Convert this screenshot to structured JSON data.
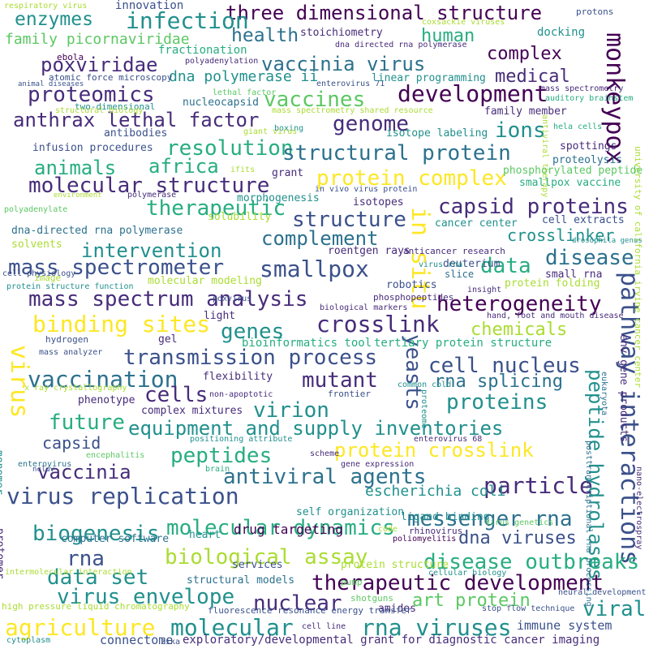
{
  "palette": {
    "p1": "#440154",
    "p2": "#472c7a",
    "p3": "#3b518b",
    "p4": "#2c718e",
    "p5": "#21908d",
    "p6": "#27ad81",
    "p7": "#5cc863",
    "p8": "#aadc32",
    "p9": "#fde725"
  },
  "words": [
    {
      "text": "three dimensional structure",
      "c": "p1"
    },
    {
      "text": "infection",
      "c": "p5"
    },
    {
      "text": "enzymes",
      "c": "p5"
    },
    {
      "text": "family picornaviridae",
      "c": "p7"
    },
    {
      "text": "health",
      "c": "p4"
    },
    {
      "text": "human",
      "c": "p6"
    },
    {
      "text": "monkeypox",
      "c": "p1"
    },
    {
      "text": "complex",
      "c": "p1"
    },
    {
      "text": "poxviridae",
      "c": "p2"
    },
    {
      "text": "vaccinia virus",
      "c": "p4"
    },
    {
      "text": "medical",
      "c": "p2"
    },
    {
      "text": "dna polymerase ii",
      "c": "p5"
    },
    {
      "text": "proteomics",
      "c": "p2"
    },
    {
      "text": "development",
      "c": "p1"
    },
    {
      "text": "vaccines",
      "c": "p7"
    },
    {
      "text": "anthrax lethal factor",
      "c": "p2"
    },
    {
      "text": "genome",
      "c": "p2"
    },
    {
      "text": "ions",
      "c": "p5"
    },
    {
      "text": "resolution",
      "c": "p6"
    },
    {
      "text": "structural protein",
      "c": "p4"
    },
    {
      "text": "animals",
      "c": "p6"
    },
    {
      "text": "africa",
      "c": "p6"
    },
    {
      "text": "molecular structure",
      "c": "p2"
    },
    {
      "text": "protein complex",
      "c": "p9"
    },
    {
      "text": "therapeutic",
      "c": "p6"
    },
    {
      "text": "capsid proteins",
      "c": "p2"
    },
    {
      "text": "structure",
      "c": "p3"
    },
    {
      "text": "in situ",
      "c": "p9"
    },
    {
      "text": "complement",
      "c": "p4"
    },
    {
      "text": "crosslinker",
      "c": "p5"
    },
    {
      "text": "intervention",
      "c": "p5"
    },
    {
      "text": "mass spectrometer",
      "c": "p3"
    },
    {
      "text": "smallpox",
      "c": "p3"
    },
    {
      "text": "data",
      "c": "p6"
    },
    {
      "text": "disease",
      "c": "p4"
    },
    {
      "text": "mass spectrum analysis",
      "c": "p2"
    },
    {
      "text": "heterogeneity",
      "c": "p1"
    },
    {
      "text": "binding sites",
      "c": "p9"
    },
    {
      "text": "genes",
      "c": "p5"
    },
    {
      "text": "crosslink",
      "c": "p2"
    },
    {
      "text": "chemicals",
      "c": "p8"
    },
    {
      "text": "pathway interactions",
      "c": "p3"
    },
    {
      "text": "transmission process",
      "c": "p3"
    },
    {
      "text": "virus",
      "c": "p9"
    },
    {
      "text": "vaccination",
      "c": "p4"
    },
    {
      "text": "cell nucleus",
      "c": "p3"
    },
    {
      "text": "mutant",
      "c": "p2"
    },
    {
      "text": "yeasts",
      "c": "p3"
    },
    {
      "text": "cells",
      "c": "p2"
    },
    {
      "text": "rna splicing",
      "c": "p4"
    },
    {
      "text": "virion",
      "c": "p5"
    },
    {
      "text": "proteins",
      "c": "p5"
    },
    {
      "text": "future",
      "c": "p6"
    },
    {
      "text": "equipment and supply inventories",
      "c": "p5"
    },
    {
      "text": "peptide hydrolases",
      "c": "p5"
    },
    {
      "text": "capsid",
      "c": "p3"
    },
    {
      "text": "peptides",
      "c": "p6"
    },
    {
      "text": "protein crosslink",
      "c": "p9"
    },
    {
      "text": "vaccinia",
      "c": "p2"
    },
    {
      "text": "antiviral agents",
      "c": "p4"
    },
    {
      "text": "particle",
      "c": "p2"
    },
    {
      "text": "virus replication",
      "c": "p3"
    },
    {
      "text": "escherichia coli",
      "c": "p5"
    },
    {
      "text": "biogenesis",
      "c": "p5"
    },
    {
      "text": "molecular dynamics",
      "c": "p6"
    },
    {
      "text": "messenger rna",
      "c": "p4"
    },
    {
      "text": "rna",
      "c": "p3"
    },
    {
      "text": "dna viruses",
      "c": "p3"
    },
    {
      "text": "biological assay",
      "c": "p8"
    },
    {
      "text": "disease outbreaks",
      "c": "p6"
    },
    {
      "text": "data set",
      "c": "p5"
    },
    {
      "text": "therapeutic development",
      "c": "p1"
    },
    {
      "text": "virus envelope",
      "c": "p5"
    },
    {
      "text": "nuclear",
      "c": "p2"
    },
    {
      "text": "art protein",
      "c": "p7"
    },
    {
      "text": "viral",
      "c": "p5"
    },
    {
      "text": "agriculture",
      "c": "p9"
    },
    {
      "text": "molecular",
      "c": "p5"
    },
    {
      "text": "rna viruses",
      "c": "p5"
    },
    {
      "text": "exploratory/developmental grant for diagnostic cancer imaging",
      "c": "p2"
    },
    {
      "text": "connectome",
      "c": "p3"
    },
    {
      "text": "immune system",
      "c": "p3"
    },
    {
      "text": "respiratory virus",
      "c": "p8"
    },
    {
      "text": "innovation",
      "c": "p3"
    },
    {
      "text": "protons",
      "c": "p3"
    },
    {
      "text": "coxsackie viruses",
      "c": "p8"
    },
    {
      "text": "stoichiometry",
      "c": "p2"
    },
    {
      "text": "dna directed rna polymerase",
      "c": "p2"
    },
    {
      "text": "docking",
      "c": "p5"
    },
    {
      "text": "ebola",
      "c": "p1"
    },
    {
      "text": "fractionation",
      "c": "p6"
    },
    {
      "text": "polyadenylation",
      "c": "p2"
    },
    {
      "text": "atomic force microscopy",
      "c": "p3"
    },
    {
      "text": "enterovirus 71",
      "c": "p3"
    },
    {
      "text": "linear programming",
      "c": "p5"
    },
    {
      "text": "mass spectrometry",
      "c": "p2"
    },
    {
      "text": "lethal factor",
      "c": "p7"
    },
    {
      "text": "auditory brainstem",
      "c": "p6"
    },
    {
      "text": "two-dimensional",
      "c": "p5"
    },
    {
      "text": "nucleocapsid",
      "c": "p4"
    },
    {
      "text": "mass spectrometry shared resource",
      "c": "p8"
    },
    {
      "text": "family member",
      "c": "p2"
    },
    {
      "text": "animal diseases",
      "c": "p3"
    },
    {
      "text": "structural biology",
      "c": "p8"
    },
    {
      "text": "antibodies",
      "c": "p3"
    },
    {
      "text": "boxing",
      "c": "p5"
    },
    {
      "text": "isotope labeling",
      "c": "p5"
    },
    {
      "text": "antiviral therapy",
      "c": "p8"
    },
    {
      "text": "hela cells",
      "c": "p6"
    },
    {
      "text": "giant virus",
      "c": "p8"
    },
    {
      "text": "university of california irvine cancer center",
      "c": "p8"
    },
    {
      "text": "infusion procedures",
      "c": "p3"
    },
    {
      "text": "spottings",
      "c": "p2"
    },
    {
      "text": "proteolysis",
      "c": "p4"
    },
    {
      "text": "ifits",
      "c": "p8"
    },
    {
      "text": "grant",
      "c": "p2"
    },
    {
      "text": "phosphorylated peptide",
      "c": "p7"
    },
    {
      "text": "smallpox vaccine",
      "c": "p6"
    },
    {
      "text": "environment",
      "c": "p8"
    },
    {
      "text": "polymerase",
      "c": "p2"
    },
    {
      "text": "in vivo virus protein",
      "c": "p3"
    },
    {
      "text": "polyadenylate",
      "c": "p7"
    },
    {
      "text": "morphogenesis",
      "c": "p5"
    },
    {
      "text": "isotopes",
      "c": "p2"
    },
    {
      "text": "solubility",
      "c": "p8"
    },
    {
      "text": "cancer center",
      "c": "p5"
    },
    {
      "text": "cell extracts",
      "c": "p3"
    },
    {
      "text": "drosophila genus",
      "c": "p5"
    },
    {
      "text": "dna-directed rna polymerase",
      "c": "p4"
    },
    {
      "text": "solvents",
      "c": "p8"
    },
    {
      "text": "roentgen rays",
      "c": "p2"
    },
    {
      "text": "deuterium",
      "c": "p3"
    },
    {
      "text": "cell physiology",
      "c": "p3"
    },
    {
      "text": "anticancer research",
      "c": "p2"
    },
    {
      "text": "image",
      "c": "p8"
    },
    {
      "text": "molecular modeling",
      "c": "p8"
    },
    {
      "text": "virus rna",
      "c": "p5"
    },
    {
      "text": "small rna",
      "c": "p2"
    },
    {
      "text": "slice",
      "c": "p4"
    },
    {
      "text": "protein structure function",
      "c": "p5"
    },
    {
      "text": "protein folding",
      "c": "p8"
    },
    {
      "text": "insight",
      "c": "p2"
    },
    {
      "text": "robotics",
      "c": "p3"
    },
    {
      "text": "phosphopeptides",
      "c": "p2"
    },
    {
      "text": "biological markers",
      "c": "p2"
    },
    {
      "text": "light",
      "c": "p2"
    },
    {
      "text": "poxvirus",
      "c": "p3"
    },
    {
      "text": "hand, foot and mouth disease",
      "c": "p2"
    },
    {
      "text": "env gene products",
      "c": "p2"
    },
    {
      "text": "hydrogen",
      "c": "p3"
    },
    {
      "text": "gel",
      "c": "p2"
    },
    {
      "text": "bioinformatics tool",
      "c": "p6"
    },
    {
      "text": "tertiary protein structure",
      "c": "p6"
    },
    {
      "text": "mass analyzer",
      "c": "p3"
    },
    {
      "text": "flexibility",
      "c": "p2"
    },
    {
      "text": "eukaryota",
      "c": "p4"
    },
    {
      "text": "x ray crystallography",
      "c": "p8"
    },
    {
      "text": "non-apoptotic",
      "c": "p2"
    },
    {
      "text": "frontier",
      "c": "p3"
    },
    {
      "text": "phenotype",
      "c": "p2"
    },
    {
      "text": "common cold",
      "c": "p5"
    },
    {
      "text": "proteome",
      "c": "p5"
    },
    {
      "text": "complex mixtures",
      "c": "p2"
    },
    {
      "text": "positioning attribute",
      "c": "p5"
    },
    {
      "text": "monomer",
      "c": "p5"
    },
    {
      "text": "encephalitis",
      "c": "p7"
    },
    {
      "text": "enterovirus 68",
      "c": "p2"
    },
    {
      "text": "enterovirus",
      "c": "p4"
    },
    {
      "text": "scheme",
      "c": "p2"
    },
    {
      "text": "brain",
      "c": "p6"
    },
    {
      "text": "posttranscriptional rna processing",
      "c": "p4"
    },
    {
      "text": "nano-electrospray",
      "c": "p2"
    },
    {
      "text": "ncldv",
      "c": "p3"
    },
    {
      "text": "gene expression",
      "c": "p2"
    },
    {
      "text": "self organization",
      "c": "p5"
    },
    {
      "text": "ligand binding",
      "c": "p5"
    },
    {
      "text": "protomer",
      "c": "p2"
    },
    {
      "text": "drug targeting",
      "c": "p1"
    },
    {
      "text": "rhinovirus",
      "c": "p2"
    },
    {
      "text": "virus genetics",
      "c": "p7"
    },
    {
      "text": "computer software",
      "c": "p4"
    },
    {
      "text": "heart",
      "c": "p5"
    },
    {
      "text": "code",
      "c": "p8"
    },
    {
      "text": "poliomyelitis",
      "c": "p1"
    },
    {
      "text": "services",
      "c": "p3"
    },
    {
      "text": "protein structure",
      "c": "p8"
    },
    {
      "text": "intermolecular interaction",
      "c": "p8"
    },
    {
      "text": "cellular biology",
      "c": "p5"
    },
    {
      "text": "pump",
      "c": "p7"
    },
    {
      "text": "shotguns",
      "c": "p7"
    },
    {
      "text": "structural models",
      "c": "p4"
    },
    {
      "text": "neural development",
      "c": "p3"
    },
    {
      "text": "high pressure liquid chromatography",
      "c": "p8"
    },
    {
      "text": "amides",
      "c": "p2"
    },
    {
      "text": "fluorescence resonance energy transfer",
      "c": "p3"
    },
    {
      "text": "stop flow technique",
      "c": "p3"
    },
    {
      "text": "cytoplasm",
      "c": "p5"
    },
    {
      "text": "zika",
      "c": "p3"
    },
    {
      "text": "cell line",
      "c": "p2"
    }
  ]
}
